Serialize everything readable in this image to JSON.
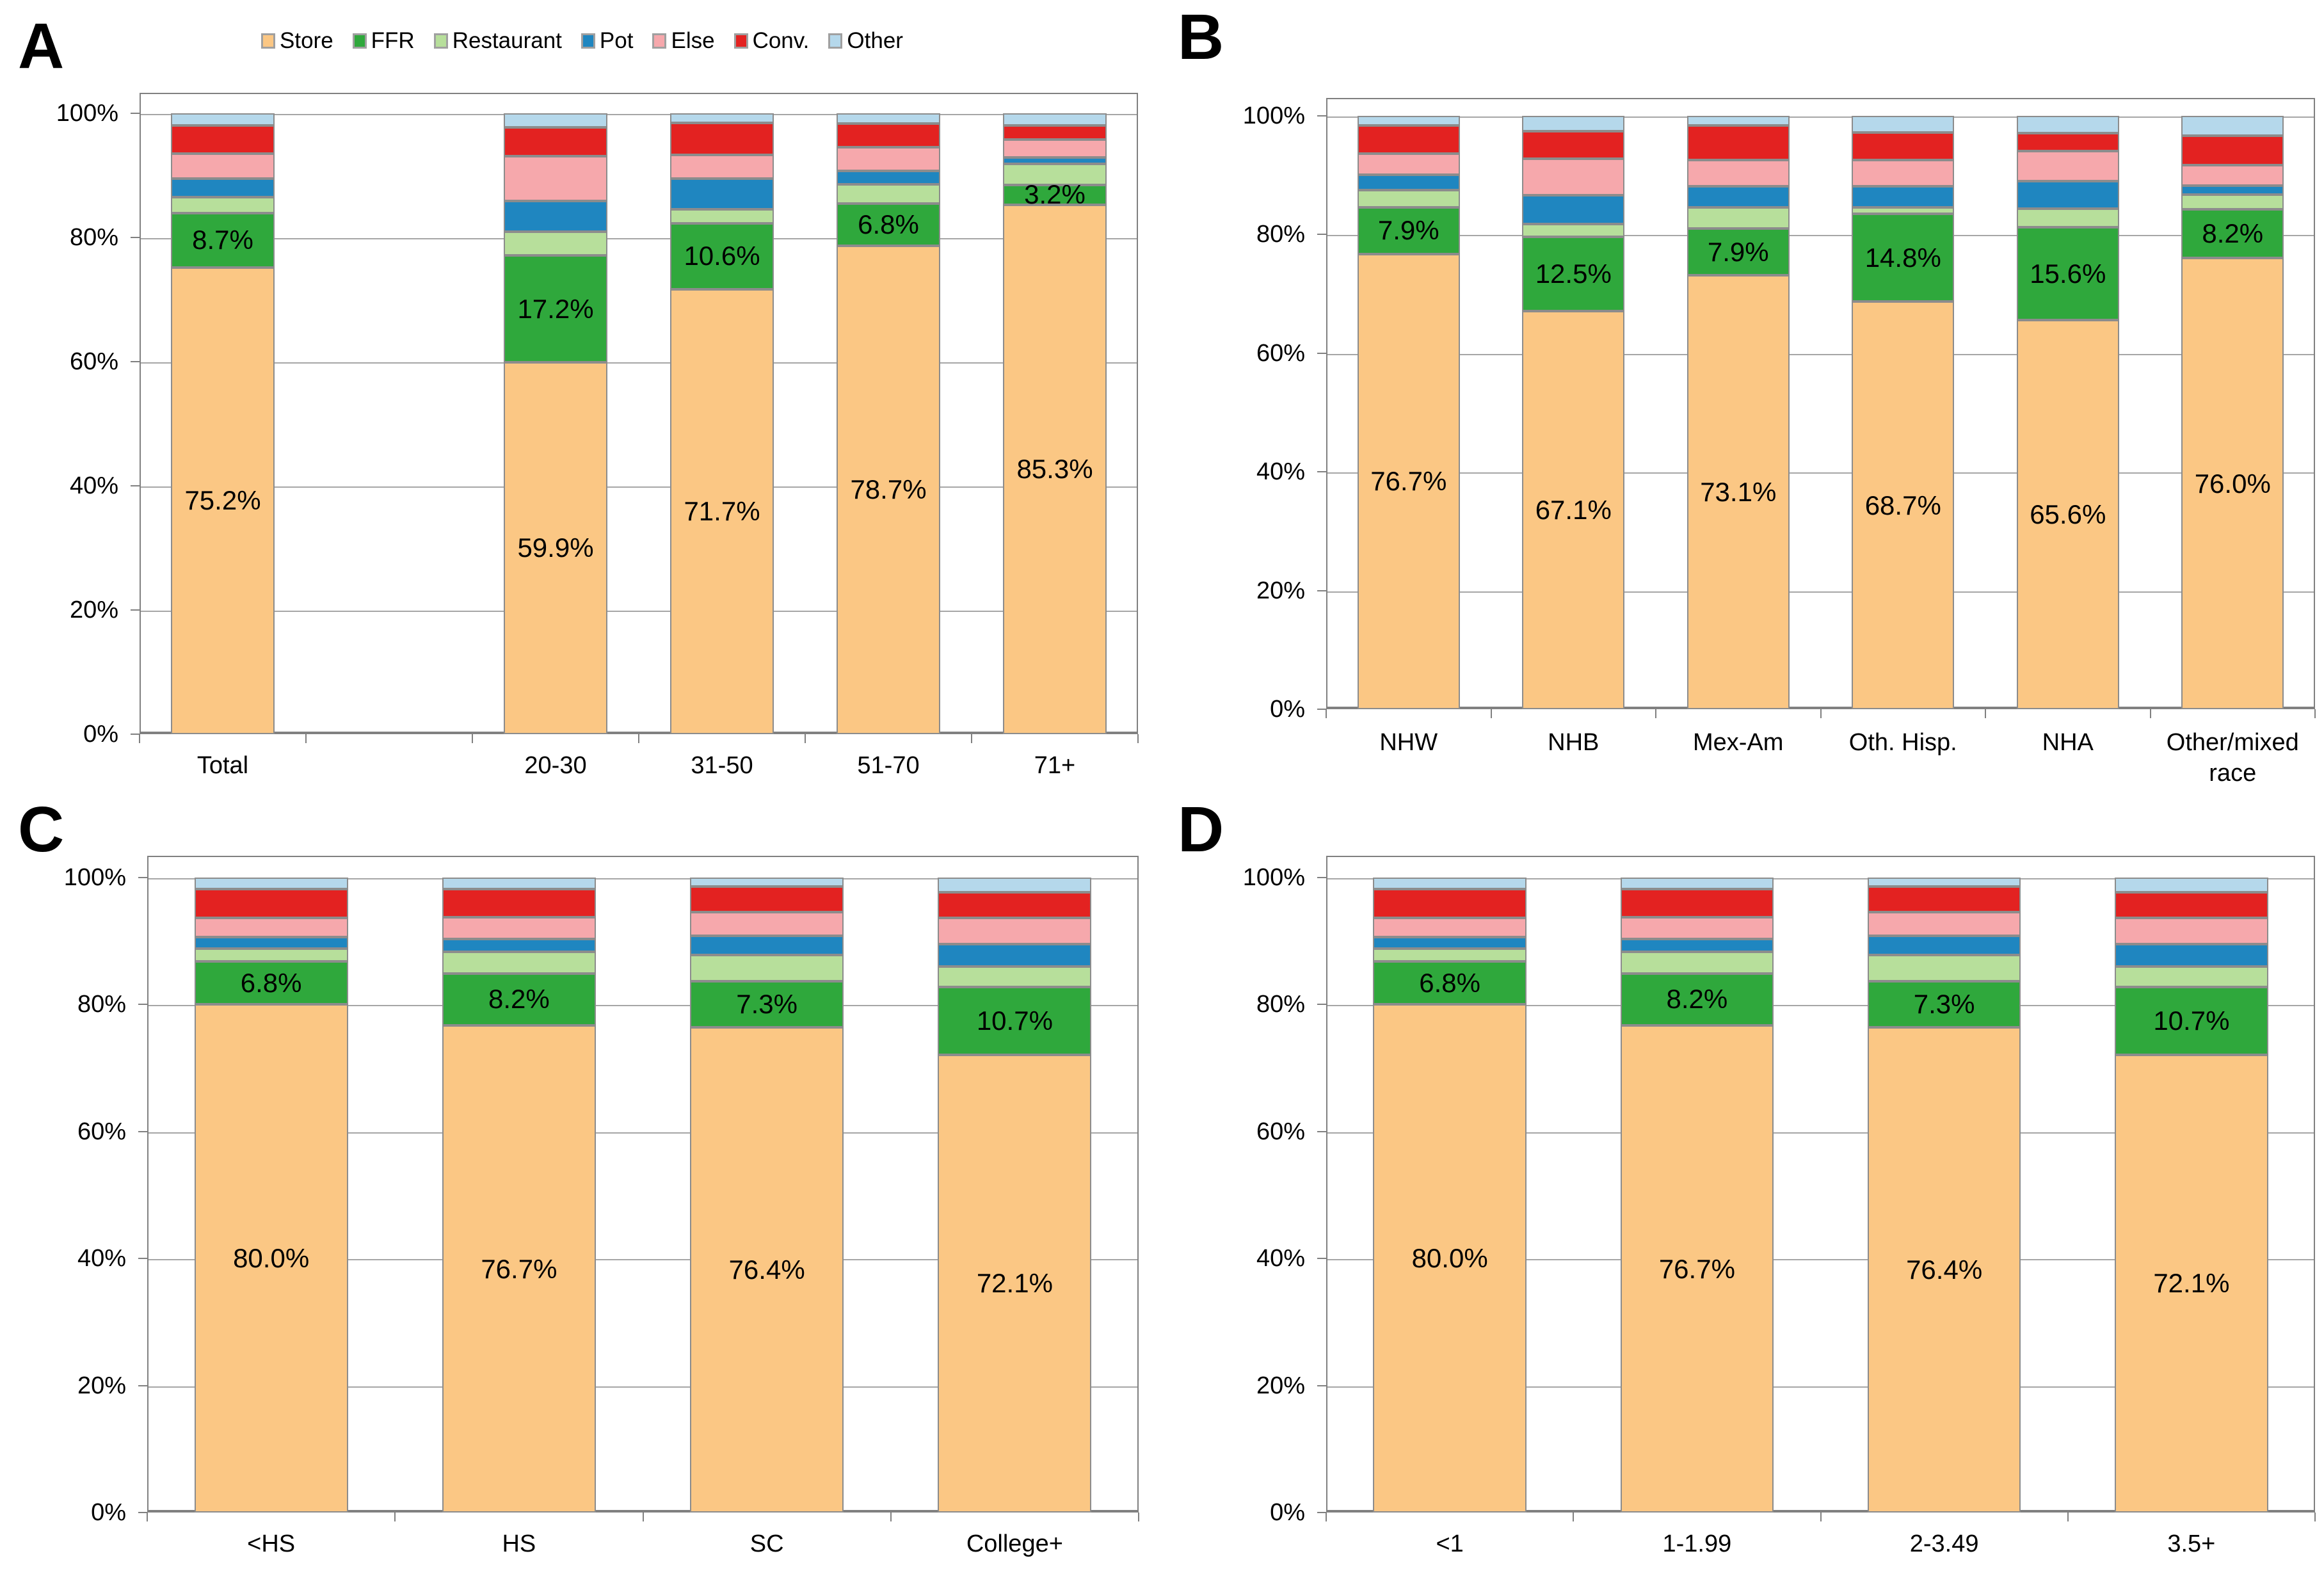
{
  "style": {
    "grid_color": "#a6a6a6",
    "frame_color": "#808080",
    "segment_border_color": "#8c8c8c",
    "text_color": "#000000"
  },
  "legend": {
    "items": [
      {
        "label": "Store",
        "color": "#FBC784"
      },
      {
        "label": "FFR",
        "color": "#2FA83C"
      },
      {
        "label": "Restaurant",
        "color": "#B7DF9B"
      },
      {
        "label": "Pot",
        "color": "#1F86C0"
      },
      {
        "label": "Else",
        "color": "#F6A8AC"
      },
      {
        "label": "Conv.",
        "color": "#E32221"
      },
      {
        "label": "Other",
        "color": "#B5D8EB"
      }
    ]
  },
  "chart_data": [
    {
      "type": "bar",
      "stacked": true,
      "panel": "A",
      "ylim": [
        0,
        100
      ],
      "grid": true,
      "yticks": [
        "0%",
        "20%",
        "40%",
        "60%",
        "80%",
        "100%"
      ],
      "categories": [
        "Total",
        "",
        "20-30",
        "31-50",
        "51-70",
        "71+"
      ],
      "series": [
        {
          "name": "Store",
          "color": "#FBC784",
          "values": [
            75.2,
            null,
            59.9,
            71.7,
            78.7,
            85.3
          ]
        },
        {
          "name": "FFR",
          "color": "#2FA83C",
          "values": [
            8.7,
            null,
            17.2,
            10.6,
            6.8,
            3.2
          ]
        },
        {
          "name": "Restaurant",
          "color": "#B7DF9B",
          "values": [
            2.6,
            null,
            3.8,
            2.2,
            3.1,
            3.4
          ]
        },
        {
          "name": "Pot",
          "color": "#1F86C0",
          "values": [
            3.0,
            null,
            5.0,
            5.0,
            2.1,
            1.0
          ]
        },
        {
          "name": "Else",
          "color": "#F6A8AC",
          "values": [
            4.0,
            null,
            7.2,
            3.8,
            3.8,
            2.9
          ]
        },
        {
          "name": "Conv.",
          "color": "#E32221",
          "values": [
            4.5,
            null,
            4.6,
            5.2,
            3.8,
            2.2
          ]
        },
        {
          "name": "Other",
          "color": "#B5D8EB",
          "values": [
            2.0,
            null,
            2.3,
            1.5,
            1.7,
            2.0
          ]
        }
      ],
      "labels": {
        "Store": [
          "75.2%",
          null,
          "59.9%",
          "71.7%",
          "78.7%",
          "85.3%"
        ],
        "FFR": [
          "8.7%",
          null,
          "17.2%",
          "10.6%",
          "6.8%",
          "3.2%"
        ]
      }
    },
    {
      "type": "bar",
      "stacked": true,
      "panel": "B",
      "ylim": [
        0,
        100
      ],
      "grid": true,
      "yticks": [
        "0%",
        "20%",
        "40%",
        "60%",
        "80%",
        "100%"
      ],
      "categories": [
        "NHW",
        "NHB",
        "Mex-Am",
        "Oth. Hisp.",
        "NHA",
        "Other/mixed race"
      ],
      "series": [
        {
          "name": "Store",
          "color": "#FBC784",
          "values": [
            76.7,
            67.1,
            73.1,
            68.7,
            65.6,
            76.0
          ]
        },
        {
          "name": "FFR",
          "color": "#2FA83C",
          "values": [
            7.9,
            12.5,
            7.9,
            14.8,
            15.6,
            8.2
          ]
        },
        {
          "name": "Restaurant",
          "color": "#B7DF9B",
          "values": [
            2.9,
            2.2,
            3.6,
            1.1,
            3.2,
            2.5
          ]
        },
        {
          "name": "Pot",
          "color": "#1F86C0",
          "values": [
            2.6,
            4.8,
            3.5,
            3.5,
            4.6,
            1.5
          ]
        },
        {
          "name": "Else",
          "color": "#F6A8AC",
          "values": [
            3.5,
            6.2,
            4.5,
            4.5,
            5.1,
            3.5
          ]
        },
        {
          "name": "Conv.",
          "color": "#E32221",
          "values": [
            4.8,
            4.6,
            5.8,
            4.6,
            3.0,
            5.0
          ]
        },
        {
          "name": "Other",
          "color": "#B5D8EB",
          "values": [
            1.6,
            2.6,
            1.6,
            2.8,
            2.9,
            3.3
          ]
        }
      ],
      "labels": {
        "Store": [
          "76.7%",
          "67.1%",
          "73.1%",
          "68.7%",
          "65.6%",
          "76.0%"
        ],
        "FFR": [
          "7.9%",
          "12.5%",
          "7.9%",
          "14.8%",
          "15.6%",
          "8.2%"
        ]
      }
    },
    {
      "type": "bar",
      "stacked": true,
      "panel": "C",
      "ylim": [
        0,
        100
      ],
      "grid": true,
      "yticks": [
        "0%",
        "20%",
        "40%",
        "60%",
        "80%",
        "100%"
      ],
      "categories": [
        "<HS",
        "HS",
        "SC",
        "College+"
      ],
      "series": [
        {
          "name": "Store",
          "color": "#FBC784",
          "values": [
            80.0,
            76.7,
            76.4,
            72.1
          ]
        },
        {
          "name": "FFR",
          "color": "#2FA83C",
          "values": [
            6.8,
            8.2,
            7.3,
            10.7
          ]
        },
        {
          "name": "Restaurant",
          "color": "#B7DF9B",
          "values": [
            2.0,
            3.4,
            4.1,
            3.2
          ]
        },
        {
          "name": "Pot",
          "color": "#1F86C0",
          "values": [
            1.8,
            2.0,
            3.0,
            3.5
          ]
        },
        {
          "name": "Else",
          "color": "#F6A8AC",
          "values": [
            3.0,
            3.4,
            3.8,
            4.1
          ]
        },
        {
          "name": "Conv.",
          "color": "#E32221",
          "values": [
            4.6,
            4.5,
            4.0,
            4.1
          ]
        },
        {
          "name": "Other",
          "color": "#B5D8EB",
          "values": [
            1.8,
            1.8,
            1.4,
            2.3
          ]
        }
      ],
      "labels": {
        "Store": [
          "80.0%",
          "76.7%",
          "76.4%",
          "72.1%"
        ],
        "FFR": [
          "6.8%",
          "8.2%",
          "7.3%",
          "10.7%"
        ]
      }
    },
    {
      "type": "bar",
      "stacked": true,
      "panel": "D",
      "ylim": [
        0,
        100
      ],
      "grid": true,
      "yticks": [
        "0%",
        "20%",
        "40%",
        "60%",
        "80%",
        "100%"
      ],
      "categories": [
        "<1",
        "1-1.99",
        "2-3.49",
        "3.5+"
      ],
      "series": [
        {
          "name": "Store",
          "color": "#FBC784",
          "values": [
            80.0,
            76.7,
            76.4,
            72.1
          ]
        },
        {
          "name": "FFR",
          "color": "#2FA83C",
          "values": [
            6.8,
            8.2,
            7.3,
            10.7
          ]
        },
        {
          "name": "Restaurant",
          "color": "#B7DF9B",
          "values": [
            2.0,
            3.4,
            4.1,
            3.2
          ]
        },
        {
          "name": "Pot",
          "color": "#1F86C0",
          "values": [
            1.8,
            2.0,
            3.0,
            3.5
          ]
        },
        {
          "name": "Else",
          "color": "#F6A8AC",
          "values": [
            3.0,
            3.4,
            3.8,
            4.1
          ]
        },
        {
          "name": "Conv.",
          "color": "#E32221",
          "values": [
            4.6,
            4.5,
            4.0,
            4.1
          ]
        },
        {
          "name": "Other",
          "color": "#B5D8EB",
          "values": [
            1.8,
            1.8,
            1.4,
            2.3
          ]
        }
      ],
      "labels": {
        "Store": [
          "80.0%",
          "76.7%",
          "76.4%",
          "72.1%"
        ],
        "FFR": [
          "6.8%",
          "8.2%",
          "7.3%",
          "10.7%"
        ]
      }
    }
  ]
}
